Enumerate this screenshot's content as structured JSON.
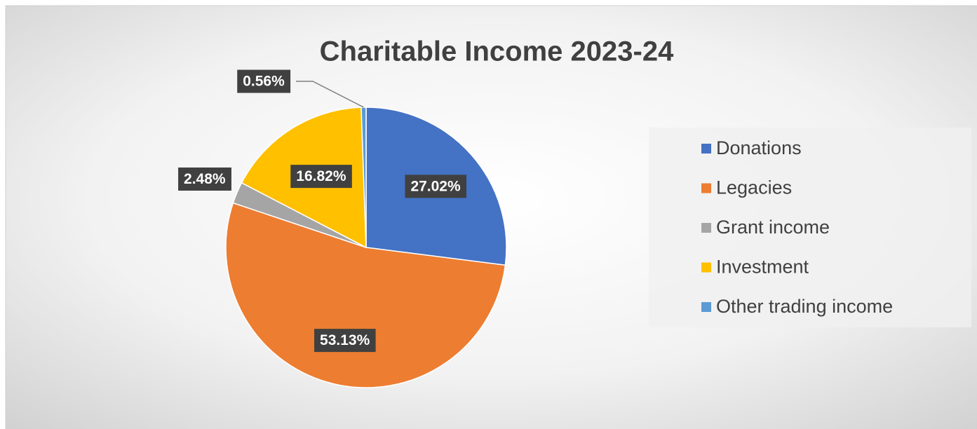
{
  "chart_data": {
    "type": "pie",
    "title": "Charitable Income 2023-24",
    "categories": [
      "Donations",
      "Legacies",
      "Grant income",
      "Investment",
      "Other trading income"
    ],
    "values": [
      27.02,
      53.13,
      2.48,
      16.82,
      0.56
    ],
    "value_labels": [
      "27.02%",
      "53.13%",
      "2.48%",
      "16.82%",
      "0.56%"
    ],
    "colors": [
      "#4472c4",
      "#ed7d31",
      "#a5a5a5",
      "#ffc000",
      "#5b9bd5"
    ],
    "legend": "right"
  }
}
